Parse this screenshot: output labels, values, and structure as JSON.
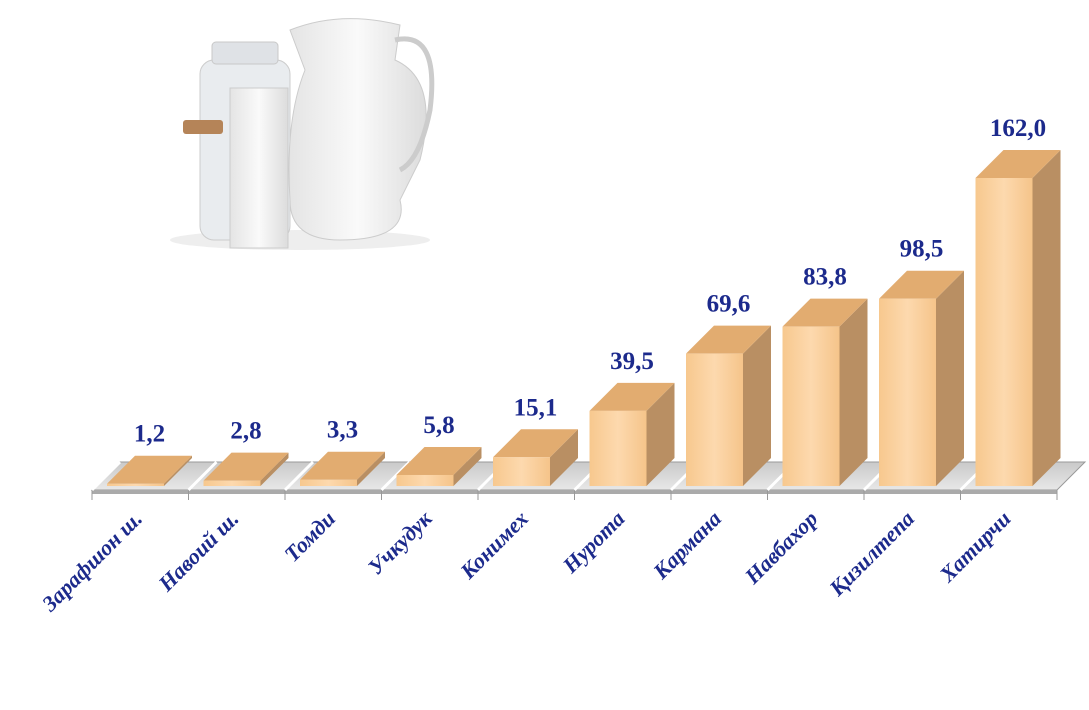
{
  "chart_data": {
    "type": "bar3d",
    "categories": [
      "Зарафшон ш.",
      "Навоий ш.",
      "Томди",
      "Учкудук",
      "Конимех",
      "Нурота",
      "Кармана",
      "Навбахор",
      "Қизилтепа",
      "Хатирчи"
    ],
    "values": [
      1.2,
      2.8,
      3.3,
      5.8,
      15.1,
      39.5,
      69.6,
      83.8,
      98.5,
      162.0
    ],
    "value_labels": [
      "1,2",
      "2,8",
      "3,3",
      "5,8",
      "15,1",
      "39,5",
      "69,6",
      "83,8",
      "98,5",
      "162,0"
    ],
    "color": "#fdd09a"
  }
}
